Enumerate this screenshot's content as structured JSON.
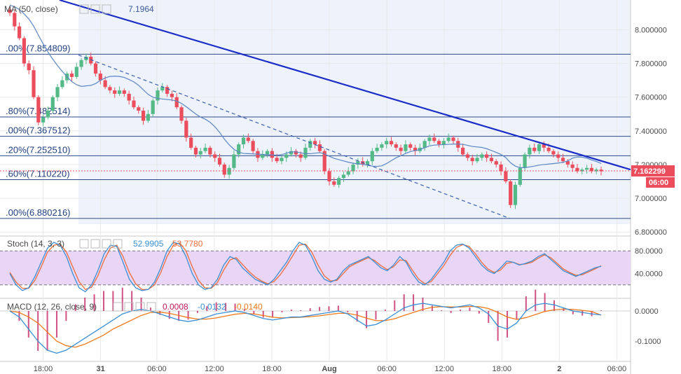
{
  "chart_data": [
    {
      "type": "candlestick",
      "indicator_label": "MA (50, close)",
      "indicator_value": "7.1964",
      "y_ticks": [
        "8.000000",
        "7.800000",
        "7.600000",
        "7.400000",
        "7.200000",
        "7.000000",
        "6.800000"
      ],
      "y_tick_values": [
        8.0,
        7.8,
        7.6,
        7.4,
        7.2,
        7.0,
        6.8
      ],
      "ylim": [
        6.78,
        8.16
      ],
      "last_price": "7.162299",
      "last_price_value": 7.1623,
      "countdown": "06:00",
      "fib_levels": [
        {
          "label": ".00%(7.854809)",
          "value": 7.854809
        },
        {
          "label": ".80%(7.482514)",
          "value": 7.482514
        },
        {
          "label": ".00%(7.367512)",
          "value": 7.367512
        },
        {
          "label": ".20%(7.252510)",
          "value": 7.25251
        },
        {
          "label": ".60%(7.110220)",
          "value": 7.11022
        },
        {
          "label": ".00%(6.880216)",
          "value": 6.880216
        }
      ],
      "close": [
        8.1,
        8.02,
        7.95,
        7.8,
        7.76,
        7.6,
        7.45,
        7.48,
        7.52,
        7.6,
        7.66,
        7.7,
        7.74,
        7.72,
        7.78,
        7.82,
        7.84,
        7.8,
        7.74,
        7.7,
        7.66,
        7.64,
        7.62,
        7.64,
        7.62,
        7.58,
        7.54,
        7.52,
        7.46,
        7.5,
        7.58,
        7.64,
        7.66,
        7.62,
        7.6,
        7.54,
        7.46,
        7.36,
        7.3,
        7.26,
        7.28,
        7.3,
        7.26,
        7.24,
        7.2,
        7.14,
        7.18,
        7.26,
        7.32,
        7.36,
        7.34,
        7.28,
        7.24,
        7.26,
        7.28,
        7.24,
        7.22,
        7.24,
        7.26,
        7.28,
        7.26,
        7.24,
        7.3,
        7.34,
        7.32,
        7.28,
        7.16,
        7.1,
        7.08,
        7.12,
        7.14,
        7.16,
        7.2,
        7.22,
        7.2,
        7.22,
        7.28,
        7.3,
        7.32,
        7.34,
        7.32,
        7.3,
        7.28,
        7.32,
        7.3,
        7.28,
        7.3,
        7.34,
        7.36,
        7.34,
        7.32,
        7.34,
        7.36,
        7.34,
        7.3,
        7.26,
        7.24,
        7.22,
        7.24,
        7.26,
        7.24,
        7.22,
        7.2,
        7.16,
        7.1,
        6.96,
        7.08,
        7.18,
        7.26,
        7.3,
        7.28,
        7.32,
        7.3,
        7.28,
        7.26,
        7.24,
        7.22,
        7.2,
        7.18,
        7.16,
        7.17,
        7.18,
        7.16,
        7.17,
        7.16
      ],
      "stoch_label": "Stoch (14, 3, 3)",
      "stoch_k_value": "52.9905",
      "stoch_d_value": "53.7780",
      "stoch_ticks": [
        "80.0000",
        "40.0000"
      ],
      "stoch_tick_values": [
        80,
        40
      ],
      "stoch_ylim": [
        0,
        100
      ],
      "stoch_band": [
        20,
        80
      ],
      "stoch_k": [
        40,
        20,
        10,
        15,
        35,
        60,
        85,
        95,
        90,
        70,
        40,
        15,
        8,
        20,
        45,
        75,
        90,
        88,
        60,
        30,
        15,
        10,
        12,
        25,
        50,
        80,
        95,
        92,
        70,
        40,
        20,
        12,
        15,
        30,
        55,
        70,
        65,
        50,
        40,
        30,
        25,
        20,
        30,
        45,
        60,
        80,
        95,
        90,
        70,
        45,
        30,
        25,
        30,
        45,
        55,
        60,
        65,
        70,
        60,
        50,
        45,
        55,
        70,
        60,
        40,
        25,
        20,
        30,
        45,
        60,
        80,
        90,
        92,
        85,
        70,
        55,
        45,
        40,
        50,
        62,
        60,
        55,
        58,
        62,
        70,
        75,
        65,
        55,
        45,
        40,
        35,
        40,
        45,
        50,
        53
      ],
      "stoch_d": [
        42,
        25,
        14,
        14,
        28,
        52,
        78,
        90,
        92,
        78,
        52,
        26,
        12,
        16,
        36,
        64,
        85,
        90,
        70,
        42,
        22,
        12,
        12,
        20,
        42,
        70,
        90,
        94,
        80,
        52,
        28,
        15,
        14,
        24,
        46,
        64,
        68,
        56,
        44,
        34,
        27,
        22,
        26,
        38,
        54,
        72,
        90,
        92,
        78,
        55,
        36,
        27,
        28,
        40,
        52,
        58,
        63,
        68,
        63,
        54,
        47,
        52,
        64,
        63,
        46,
        30,
        22,
        26,
        40,
        54,
        72,
        86,
        91,
        88,
        75,
        60,
        48,
        42,
        46,
        58,
        60,
        56,
        57,
        60,
        67,
        73,
        68,
        58,
        48,
        42,
        37,
        38,
        43,
        48,
        53.8
      ],
      "macd_label": "MACD (12, 26, close, 9)",
      "macd_values": [
        "0.0008",
        "-0.0132",
        "-0.0140"
      ],
      "macd_ticks": [
        "0.0000",
        "-0.1000"
      ],
      "macd_tick_values": [
        0.0,
        -0.1
      ],
      "macd_ylim": [
        -0.16,
        0.03
      ],
      "macd_line": [
        0.0,
        -0.02,
        -0.06,
        -0.1,
        -0.13,
        -0.14,
        -0.13,
        -0.11,
        -0.09,
        -0.07,
        -0.05,
        -0.03,
        -0.01,
        0.0,
        0.005,
        0.0,
        -0.01,
        -0.02,
        -0.03,
        -0.035,
        -0.03,
        -0.02,
        -0.01,
        -0.005,
        0.0,
        -0.005,
        -0.015,
        -0.025,
        -0.03,
        -0.025,
        -0.02,
        -0.02,
        -0.015,
        -0.01,
        -0.005,
        0.0,
        -0.01,
        -0.03,
        -0.05,
        -0.045,
        -0.03,
        -0.01,
        0.01,
        0.02,
        0.025,
        0.02,
        0.015,
        0.01,
        0.015,
        0.02,
        0.01,
        -0.01,
        -0.05,
        -0.06,
        -0.04,
        0.0,
        0.02,
        0.025,
        0.02,
        0.01,
        0.0,
        -0.005,
        -0.01,
        -0.0132
      ],
      "macd_signal": [
        0.0,
        -0.005,
        -0.02,
        -0.04,
        -0.07,
        -0.1,
        -0.115,
        -0.12,
        -0.11,
        -0.095,
        -0.08,
        -0.06,
        -0.045,
        -0.03,
        -0.015,
        -0.005,
        -0.004,
        -0.008,
        -0.015,
        -0.022,
        -0.027,
        -0.027,
        -0.023,
        -0.017,
        -0.011,
        -0.008,
        -0.01,
        -0.015,
        -0.021,
        -0.023,
        -0.022,
        -0.021,
        -0.019,
        -0.016,
        -0.012,
        -0.008,
        -0.008,
        -0.014,
        -0.024,
        -0.032,
        -0.032,
        -0.026,
        -0.015,
        -0.005,
        0.005,
        0.012,
        0.014,
        0.013,
        0.013,
        0.015,
        0.014,
        0.008,
        -0.005,
        -0.02,
        -0.028,
        -0.022,
        -0.012,
        -0.002,
        0.004,
        0.006,
        0.005,
        0.002,
        -0.002,
        -0.014
      ],
      "x_ticks": [
        "18:00",
        "31",
        "06:00",
        "12:00",
        "18:00",
        "Aug",
        "06:00",
        "12:00",
        "18:00",
        "2",
        "06:00"
      ],
      "x_tick_positions": [
        0.06,
        0.152,
        0.242,
        0.334,
        0.426,
        0.518,
        0.61,
        0.702,
        0.794,
        0.886,
        0.978
      ]
    }
  ]
}
